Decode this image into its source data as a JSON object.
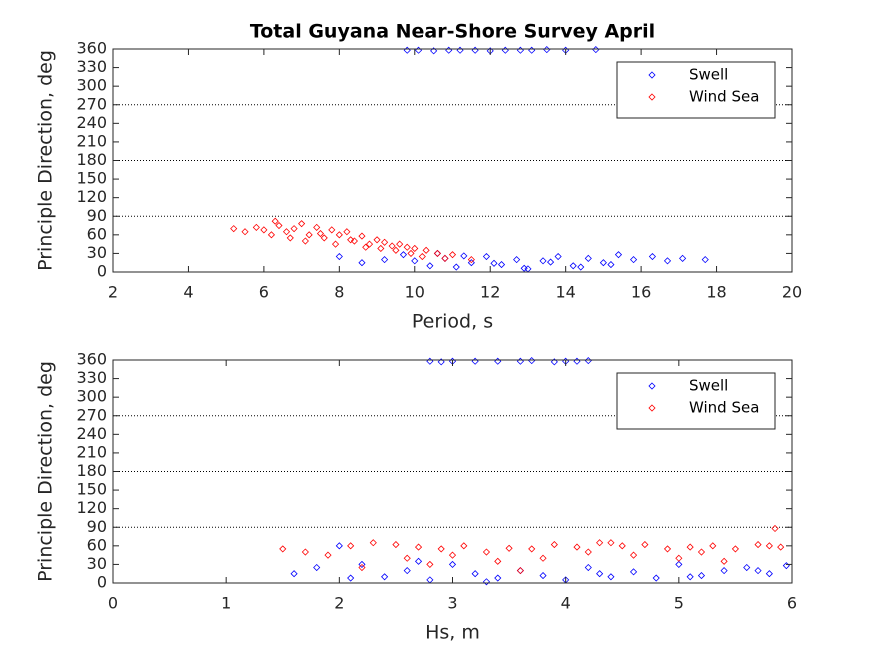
{
  "chart_data": [
    {
      "type": "scatter",
      "title": "Total Guyana Near-Shore Survey April",
      "xlabel": "Period, s",
      "ylabel": "Principle Direction, deg",
      "xlim": [
        2,
        20
      ],
      "xticks": [
        2,
        4,
        6,
        8,
        10,
        12,
        14,
        16,
        18,
        20
      ],
      "ylim": [
        0,
        360
      ],
      "yticks": [
        0,
        30,
        60,
        90,
        120,
        150,
        180,
        210,
        240,
        270,
        300,
        330,
        360
      ],
      "reference_lines": [
        90,
        180,
        270
      ],
      "legend": "upper right",
      "series": [
        {
          "name": "Swell",
          "color": "#0000ff",
          "x": [
            9.8,
            10.1,
            10.5,
            10.9,
            11.2,
            11.6,
            12.0,
            12.4,
            12.8,
            13.1,
            13.5,
            14.0,
            14.8,
            8.0,
            8.6,
            9.2,
            9.7,
            10.0,
            10.4,
            10.8,
            11.1,
            11.5,
            11.9,
            12.3,
            12.7,
            13.0,
            13.4,
            13.8,
            14.2,
            14.6,
            15.0,
            15.4,
            15.8,
            16.3,
            16.7,
            17.1,
            17.7,
            10.6,
            11.3,
            12.1,
            12.9,
            13.6,
            14.4,
            15.2
          ],
          "y": [
            358,
            358,
            357,
            358,
            358,
            358,
            357,
            358,
            358,
            358,
            359,
            358,
            359,
            25,
            15,
            20,
            28,
            18,
            10,
            22,
            8,
            15,
            25,
            12,
            20,
            5,
            18,
            25,
            10,
            22,
            15,
            28,
            20,
            25,
            18,
            22,
            20,
            30,
            26,
            14,
            6,
            16,
            8,
            12
          ]
        },
        {
          "name": "Wind Sea",
          "color": "#ff0000",
          "x": [
            5.2,
            5.5,
            5.8,
            6.0,
            6.2,
            6.4,
            6.6,
            6.8,
            7.0,
            7.2,
            7.4,
            7.6,
            7.8,
            8.0,
            8.2,
            8.4,
            8.6,
            8.8,
            9.0,
            9.2,
            9.4,
            9.6,
            9.8,
            10.0,
            10.3,
            10.6,
            11.0,
            6.3,
            6.7,
            7.1,
            7.5,
            7.9,
            8.3,
            8.7,
            9.1,
            9.5,
            9.9,
            10.2,
            10.8,
            11.5
          ],
          "y": [
            70,
            65,
            72,
            68,
            60,
            75,
            65,
            70,
            78,
            60,
            72,
            55,
            68,
            60,
            65,
            50,
            58,
            45,
            52,
            48,
            42,
            45,
            40,
            38,
            35,
            30,
            28,
            82,
            55,
            50,
            62,
            45,
            52,
            40,
            38,
            35,
            30,
            25,
            22,
            20
          ]
        }
      ]
    },
    {
      "type": "scatter",
      "xlabel": "Hs, m",
      "ylabel": "Principle Direction, deg",
      "xlim": [
        0,
        6
      ],
      "xticks": [
        0,
        1,
        2,
        3,
        4,
        5,
        6
      ],
      "ylim": [
        0,
        360
      ],
      "yticks": [
        0,
        30,
        60,
        90,
        120,
        150,
        180,
        210,
        240,
        270,
        300,
        330,
        360
      ],
      "reference_lines": [
        90,
        180,
        270
      ],
      "legend": "upper right",
      "series": [
        {
          "name": "Swell",
          "color": "#0000ff",
          "x": [
            2.8,
            2.9,
            3.0,
            3.2,
            3.4,
            3.6,
            3.7,
            3.9,
            4.0,
            4.1,
            4.2,
            1.6,
            1.8,
            2.0,
            2.2,
            2.4,
            2.6,
            2.8,
            3.0,
            3.2,
            3.4,
            3.6,
            3.8,
            4.0,
            4.2,
            4.4,
            4.6,
            4.8,
            5.0,
            5.2,
            5.4,
            5.6,
            5.8,
            5.95,
            2.1,
            2.7,
            3.3,
            4.3,
            5.1,
            5.7
          ],
          "y": [
            358,
            357,
            358,
            358,
            358,
            358,
            359,
            357,
            358,
            358,
            359,
            15,
            25,
            60,
            30,
            10,
            20,
            5,
            30,
            15,
            8,
            20,
            12,
            5,
            25,
            10,
            18,
            8,
            30,
            12,
            20,
            25,
            15,
            28,
            8,
            35,
            2,
            15,
            10,
            20
          ]
        },
        {
          "name": "Wind Sea",
          "color": "#ff0000",
          "x": [
            1.5,
            1.7,
            1.9,
            2.1,
            2.3,
            2.5,
            2.7,
            2.9,
            3.1,
            3.3,
            3.5,
            3.7,
            3.9,
            4.1,
            4.3,
            4.5,
            4.7,
            4.9,
            5.1,
            5.3,
            5.5,
            5.7,
            5.9,
            2.6,
            2.8,
            3.0,
            3.4,
            3.8,
            4.2,
            4.6,
            5.0,
            5.4,
            5.8,
            2.2,
            3.6,
            4.4,
            5.2,
            5.85
          ],
          "y": [
            55,
            50,
            45,
            60,
            65,
            62,
            58,
            55,
            60,
            50,
            56,
            55,
            62,
            58,
            65,
            60,
            62,
            55,
            58,
            60,
            55,
            62,
            58,
            40,
            30,
            45,
            35,
            40,
            50,
            45,
            40,
            35,
            60,
            25,
            20,
            65,
            50,
            88
          ]
        }
      ]
    }
  ]
}
